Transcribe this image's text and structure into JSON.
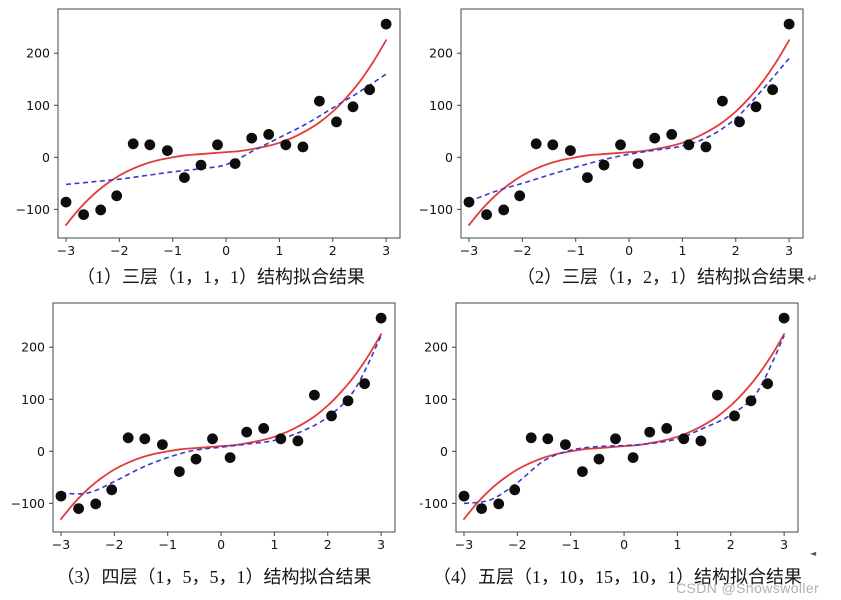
{
  "page": {
    "background": "#ffffff"
  },
  "watermark": {
    "text": "CSDN @Showswoller",
    "color": "#a9b1b9"
  },
  "stray_mark": {
    "text": "◄"
  },
  "chart_data": {
    "type": "scatter",
    "layout": "2x2 subplots, no grid, no legend",
    "title": "",
    "xlabel": "",
    "ylabel": "",
    "x_ticks": [
      -3,
      -2,
      -1,
      0,
      1,
      2,
      3
    ],
    "y_ticks": [
      -100,
      0,
      100,
      200
    ],
    "xlim": [
      -3.15,
      3.26
    ],
    "ylim": [
      -155,
      285
    ],
    "grid": false,
    "legend": false,
    "frame_color": "#444444",
    "tick_label_color": "#111111",
    "scatter": {
      "color": "#0d0d0d",
      "marker": "circle",
      "points": [
        [
          -3.0,
          -86
        ],
        [
          -2.67,
          -110
        ],
        [
          -2.35,
          -101
        ],
        [
          -2.05,
          -74
        ],
        [
          -1.74,
          26
        ],
        [
          -1.43,
          24
        ],
        [
          -1.1,
          13
        ],
        [
          -0.78,
          -39
        ],
        [
          -0.47,
          -15
        ],
        [
          -0.16,
          24
        ],
        [
          0.17,
          -12
        ],
        [
          0.48,
          37
        ],
        [
          0.8,
          44
        ],
        [
          1.12,
          24
        ],
        [
          1.44,
          20
        ],
        [
          1.75,
          108
        ],
        [
          2.07,
          68
        ],
        [
          2.38,
          97
        ],
        [
          2.69,
          130
        ],
        [
          3.0,
          256
        ]
      ]
    },
    "red_curve": {
      "name": "cubic-fit-target",
      "color": "#e23b3b",
      "style": "solid",
      "x_start": -3,
      "x_step": 0.25,
      "values": [
        -130,
        -99,
        -73,
        -52,
        -35,
        -22,
        -12,
        -5,
        0,
        4,
        6,
        8,
        10,
        12,
        16,
        21,
        28,
        38,
        51,
        67,
        88,
        114,
        145,
        182,
        225
      ]
    },
    "blue_style": {
      "color": "#3a3acc",
      "style": "dashed",
      "dash": "5 3.5"
    },
    "subplots": [
      {
        "caption": "（1）三层（1，1，1）结构拟合结果",
        "blue_x_start": -3,
        "blue_x_step": 0.5,
        "blue_values": [
          -52,
          -47,
          -42,
          -35,
          -28,
          -22,
          -14,
          12,
          38,
          64,
          95,
          126,
          160
        ]
      },
      {
        "caption": "（2）三层（1，2，1）结构拟合结果",
        "trailing_mark": "↵",
        "blue_x_start": -3,
        "blue_x_step": 0.5,
        "blue_values": [
          -85,
          -65,
          -50,
          -34,
          -19,
          -5,
          6,
          14,
          22,
          40,
          75,
          130,
          190
        ]
      },
      {
        "caption": "（3）四层（1，5，5，1）结构拟合结果",
        "blue_x_start": -3,
        "blue_x_step": 0.5,
        "blue_values": [
          -80,
          -80,
          -58,
          -32,
          -12,
          2,
          8,
          14,
          21,
          38,
          66,
          118,
          222
        ]
      },
      {
        "caption": "（4）五层（1，10，15，10，1）结构拟合结果",
        "blue_x_start": -3,
        "blue_x_step": 0.5,
        "blue_values": [
          -100,
          -93,
          -60,
          -18,
          2,
          9,
          11,
          15,
          24,
          45,
          70,
          115,
          222
        ]
      }
    ]
  }
}
